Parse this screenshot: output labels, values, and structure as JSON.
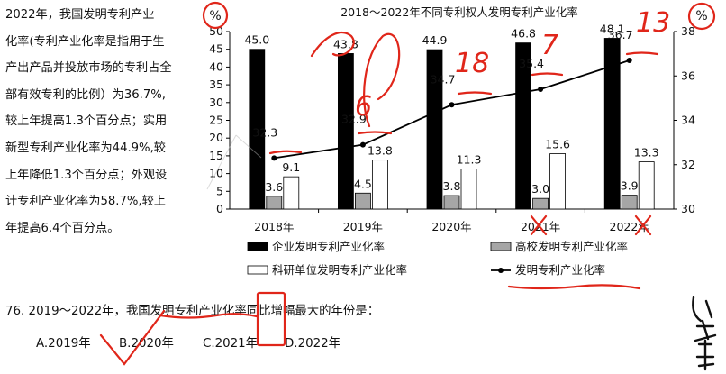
{
  "passage": {
    "lines": [
      "2022年，我国发明专利产业",
      "化率(专利产业化率是指用于生",
      "产出产品并投放市场的专利占全",
      "部有效专利的比例）为36.7%,",
      "较上年提高1.3个百分点；实用",
      "新型专利产业化率为44.9%,较",
      "上年降低1.3个百分点；外观设",
      "计专利产业化率为58.7%,较上",
      "年提高6.4个百分点。"
    ]
  },
  "question": {
    "stem": "76. 2019～2022年，我国发明专利产业化率同比增幅最大的年份是：",
    "options": [
      "A.2019年",
      "B.2020年",
      "C.2021年",
      "D.2022年"
    ]
  },
  "handwriting": {
    "left_unit": "%",
    "right_unit": "%",
    "numbers": [
      "6",
      "18",
      "7",
      "13"
    ]
  },
  "chart_data": {
    "type": "bar",
    "title": "2018～2022年不同专利权人发明专利产业化率",
    "categories": [
      "2018年",
      "2019年",
      "2020年",
      "2021年",
      "2022年"
    ],
    "y_left": {
      "unit": "%",
      "ylim": [
        0,
        50
      ],
      "ticks": [
        0,
        5,
        10,
        15,
        20,
        25,
        30,
        35,
        40,
        45,
        50
      ]
    },
    "y_right": {
      "unit": "%",
      "ylim": [
        30,
        38
      ],
      "ticks": [
        30,
        32,
        34,
        36,
        38
      ]
    },
    "series": [
      {
        "name": "企业发明专利产业化率",
        "kind": "bar",
        "color": "#000000",
        "values": [
          45.0,
          43.8,
          44.9,
          46.8,
          48.1
        ],
        "labels": [
          "45.0",
          "43.8",
          "44.9",
          "46.8",
          "48.1"
        ]
      },
      {
        "name": "高校发明专利产业化率",
        "kind": "bar",
        "color": "#a6a6a6",
        "values": [
          3.6,
          4.5,
          3.8,
          3.0,
          3.9
        ],
        "labels": [
          "3.6",
          "4.5",
          "3.8",
          "3.0",
          "3.9"
        ]
      },
      {
        "name": "科研单位发明专利产业化率",
        "kind": "bar",
        "color": "#ffffff",
        "values": [
          9.1,
          13.8,
          11.3,
          15.6,
          13.3
        ],
        "labels": [
          "9.1",
          "13.8",
          "11.3",
          "15.6",
          "13.3"
        ]
      },
      {
        "name": "发明专利产业化率",
        "kind": "line",
        "axis": "right",
        "color": "#000000",
        "values": [
          32.3,
          32.9,
          34.7,
          35.4,
          36.7
        ],
        "labels": [
          "32.3",
          "32.9",
          "34.7",
          "35.4",
          "36.7"
        ]
      }
    ],
    "legend": "bottom",
    "grid": false
  }
}
